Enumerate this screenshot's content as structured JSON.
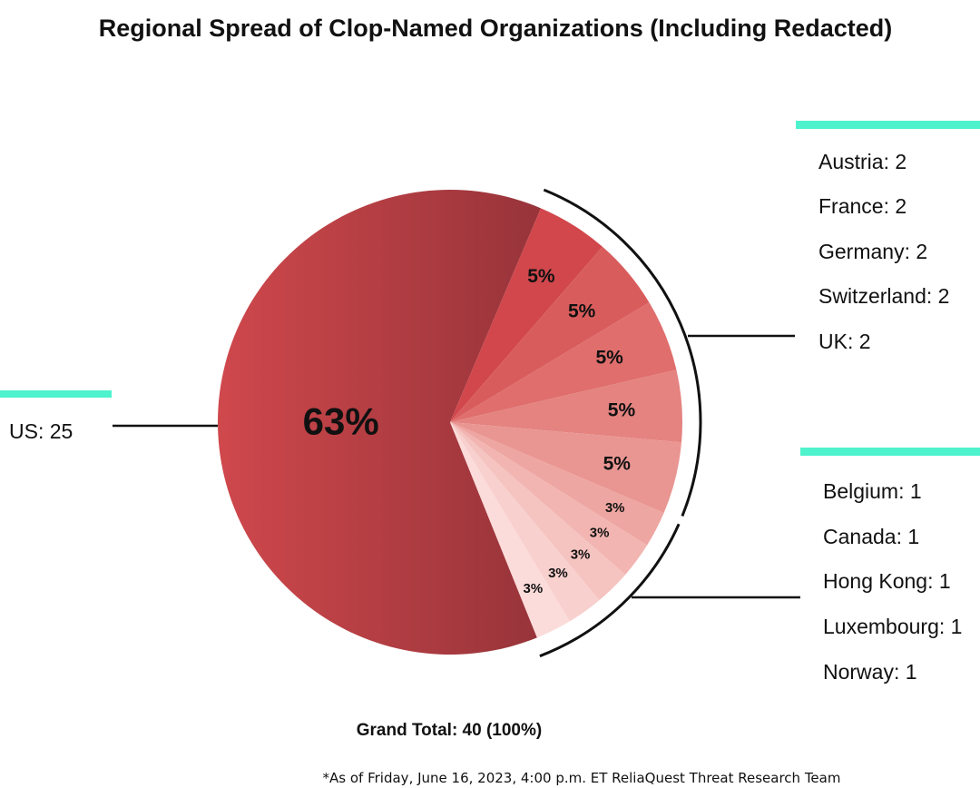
{
  "chart_data": {
    "type": "pie",
    "title": "Regional Spread of Clop-Named Organizations (Including Redacted)",
    "slices": [
      {
        "label": "US",
        "value": 25,
        "pct_label": "63%",
        "color": "#c8474a"
      },
      {
        "label": "Austria",
        "value": 2,
        "pct_label": "5%",
        "color": "#d1474c"
      },
      {
        "label": "France",
        "value": 2,
        "pct_label": "5%",
        "color": "#d95c5c"
      },
      {
        "label": "Germany",
        "value": 2,
        "pct_label": "5%",
        "color": "#df6e6c"
      },
      {
        "label": "Switzerland",
        "value": 2,
        "pct_label": "5%",
        "color": "#e48380"
      },
      {
        "label": "UK",
        "value": 2,
        "pct_label": "5%",
        "color": "#e99692"
      },
      {
        "label": "Belgium",
        "value": 1,
        "pct_label": "3%",
        "color": "#eea6a2"
      },
      {
        "label": "Canada",
        "value": 1,
        "pct_label": "3%",
        "color": "#f2b5b1"
      },
      {
        "label": "Hong Kong",
        "value": 1,
        "pct_label": "3%",
        "color": "#f5c3c0"
      },
      {
        "label": "Luxembourg",
        "value": 1,
        "pct_label": "3%",
        "color": "#f8d0ce"
      },
      {
        "label": "Norway",
        "value": 1,
        "pct_label": "3%",
        "color": "#fbdcda"
      }
    ],
    "legend_groups": [
      {
        "name": "us",
        "entries": [
          "US: 25"
        ]
      },
      {
        "name": "two-each",
        "entries": [
          "Austria: 2",
          "France: 2",
          "Germany: 2",
          "Switzerland: 2",
          "UK: 2"
        ]
      },
      {
        "name": "one-each",
        "entries": [
          "Belgium: 1",
          "Canada: 1",
          "Hong Kong: 1",
          "Luxembourg: 1",
          "Norway: 1"
        ]
      }
    ],
    "total_label": "Grand Total: 40 (100%)",
    "footnote": "*As of Friday, June 16, 2023, 4:00 p.m. ET ReliaQuest Threat Research Team"
  },
  "colors": {
    "accent": "#4ef2cc",
    "us_dark": "#97343a",
    "us_light": "#cf484c"
  }
}
